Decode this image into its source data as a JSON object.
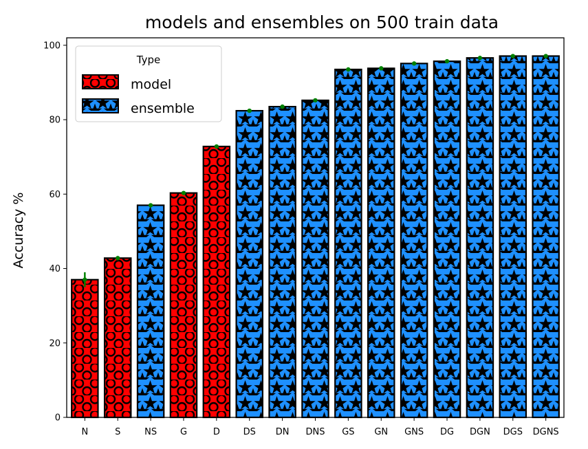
{
  "chart_data": {
    "type": "bar",
    "title": "models and ensembles on 500 train data",
    "xlabel": "",
    "ylabel": "Accuracy %",
    "ylim": [
      0,
      102
    ],
    "yticks": [
      0,
      20,
      40,
      60,
      80,
      100
    ],
    "grid": false,
    "categories": [
      "N",
      "S",
      "NS",
      "G",
      "D",
      "DS",
      "DN",
      "DNS",
      "GS",
      "GN",
      "GNS",
      "DG",
      "DGN",
      "DGS",
      "DGNS"
    ],
    "values": [
      37.0,
      42.8,
      57.0,
      60.3,
      72.8,
      82.4,
      83.5,
      85.2,
      93.5,
      93.8,
      95.1,
      95.7,
      96.6,
      97.1,
      97.1
    ],
    "errors": [
      2.0,
      0.3,
      0.3,
      0.3,
      0.3,
      0.3,
      0.3,
      0.3,
      0.3,
      0.3,
      0.3,
      0.3,
      0.3,
      0.3,
      0.3
    ],
    "types": [
      "model",
      "model",
      "ensemble",
      "model",
      "model",
      "ensemble",
      "ensemble",
      "ensemble",
      "ensemble",
      "ensemble",
      "ensemble",
      "ensemble",
      "ensemble",
      "ensemble",
      "ensemble"
    ],
    "legend": {
      "title": "Type",
      "placement": "top-left",
      "entries": [
        {
          "name": "model",
          "color": "#ff0000",
          "hatch": "circles"
        },
        {
          "name": "ensemble",
          "color": "#1e90ff",
          "hatch": "stars"
        }
      ]
    },
    "error_color": "#008000"
  }
}
